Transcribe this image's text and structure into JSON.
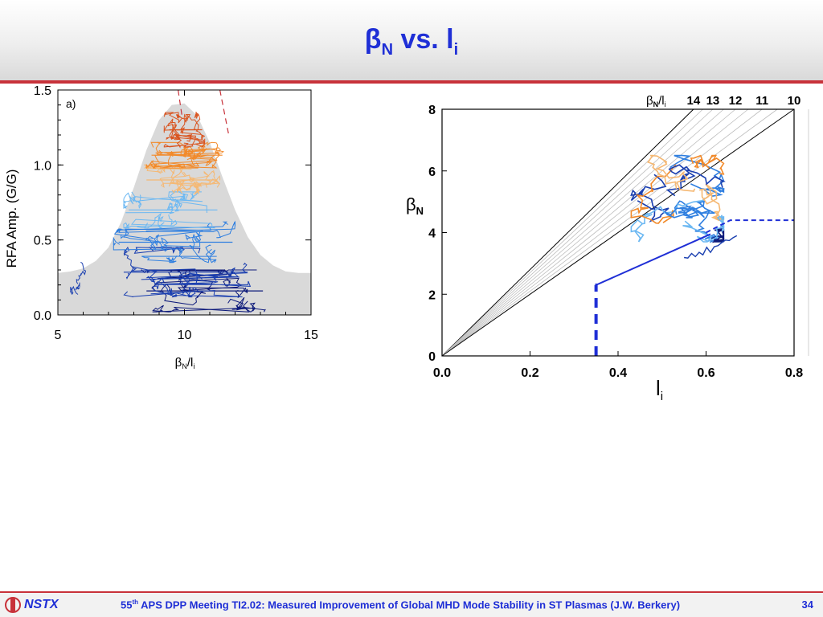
{
  "slide": {
    "title_main": "β",
    "title_sub1": "N",
    "title_mid": " vs. l",
    "title_sub2": "i",
    "footer_logo": "NSTX",
    "footer_sup": "th",
    "footer_pre": "55",
    "footer_text": " APS DPP Meeting TI2.02: Measured Improvement of Global MHD Mode Stability in ST Plasmas (J.W. Berkery)",
    "page_number": "34"
  },
  "colors": {
    "accent": "#1f2fd6",
    "rule": "#c8323a",
    "envelope": "#d9d9d9",
    "series": [
      "#0d1a7a",
      "#1a3fb0",
      "#2f7fe0",
      "#6cb8f2",
      "#f5b873",
      "#f28a2a",
      "#d9531e"
    ]
  },
  "chart_data": [
    {
      "type": "line",
      "panel_label": "a)",
      "xlabel": "β",
      "xlabel_sub1": "N",
      "xlabel_mid": "/l",
      "xlabel_sub2": "i",
      "ylabel": "RFA Amp. (G/G)",
      "xlim": [
        5,
        15
      ],
      "ylim": [
        0,
        1.5
      ],
      "x_ticks": [
        "5",
        "10",
        "15"
      ],
      "y_ticks": [
        "0.0",
        "0.5",
        "1.0",
        "1.5"
      ],
      "envelope": {
        "x": [
          5.0,
          5.5,
          6.0,
          6.5,
          7.0,
          7.5,
          8.0,
          8.5,
          9.0,
          9.5,
          10.0,
          10.5,
          11.0,
          11.5,
          12.0,
          12.5,
          13.0,
          13.5,
          14.0,
          14.5,
          15.0
        ],
        "y": [
          0.28,
          0.29,
          0.31,
          0.36,
          0.45,
          0.62,
          0.85,
          1.1,
          1.3,
          1.4,
          1.41,
          1.33,
          1.15,
          0.92,
          0.7,
          0.52,
          0.4,
          0.33,
          0.29,
          0.28,
          0.28
        ]
      },
      "dashed_lines": [
        {
          "x": [
            9.75,
            9.9
          ],
          "y": [
            1.5,
            1.33
          ]
        },
        {
          "x": [
            11.4,
            11.75
          ],
          "y": [
            1.5,
            1.2
          ]
        }
      ],
      "bands": [
        {
          "color_index": 0,
          "ylo": 0.02,
          "yhi": 0.3,
          "xlo": 8.3,
          "xhi": 13.2
        },
        {
          "color_index": 1,
          "ylo": 0.12,
          "yhi": 0.45,
          "xlo": 7.4,
          "xhi": 12.6
        },
        {
          "color_index": 2,
          "ylo": 0.35,
          "yhi": 0.62,
          "xlo": 7.2,
          "xhi": 12.0
        },
        {
          "color_index": 3,
          "ylo": 0.58,
          "yhi": 0.82,
          "xlo": 7.6,
          "xhi": 11.4
        },
        {
          "color_index": 4,
          "ylo": 0.8,
          "yhi": 1.0,
          "xlo": 8.3,
          "xhi": 11.4
        },
        {
          "color_index": 5,
          "ylo": 0.98,
          "yhi": 1.15,
          "xlo": 8.5,
          "xhi": 11.6
        },
        {
          "color_index": 6,
          "ylo": 1.12,
          "yhi": 1.35,
          "xlo": 9.2,
          "xhi": 10.8
        }
      ],
      "outlier_cluster": {
        "color_index": 1,
        "x": [
          5.5,
          6.1
        ],
        "y": [
          0.08,
          0.38
        ]
      }
    },
    {
      "type": "line",
      "xlabel": "l",
      "xlabel_sub": "i",
      "ylabel": "β",
      "ylabel_sub": "N",
      "xlim": [
        0.0,
        0.8
      ],
      "ylim": [
        0,
        8
      ],
      "x_ticks": [
        "0.0",
        "0.2",
        "0.4",
        "0.6",
        "0.8"
      ],
      "y_ticks": [
        "0",
        "2",
        "4",
        "6",
        "8"
      ],
      "ratio_label": "β",
      "ratio_label_sub1": "N",
      "ratio_label_mid": "/l",
      "ratio_label_sub2": "i",
      "ratio_lines": [
        {
          "ratio": 14,
          "label": "14",
          "style": "dark"
        },
        {
          "ratio": 13.5,
          "label": "",
          "style": "light"
        },
        {
          "ratio": 13,
          "label": "13",
          "style": "light"
        },
        {
          "ratio": 12.5,
          "label": "",
          "style": "light"
        },
        {
          "ratio": 12,
          "label": "12",
          "style": "light"
        },
        {
          "ratio": 11.5,
          "label": "",
          "style": "light"
        },
        {
          "ratio": 11,
          "label": "11",
          "style": "light"
        },
        {
          "ratio": 10.5,
          "label": "",
          "style": "light"
        },
        {
          "ratio": 10,
          "label": "10",
          "style": "dark"
        }
      ],
      "boundary_solid": {
        "x": [
          0.35,
          0.35,
          0.61
        ],
        "y": [
          2.35,
          2.3,
          3.95
        ]
      },
      "boundary_dashed_vertical": {
        "x": [
          0.35,
          0.35
        ],
        "y": [
          0.0,
          2.3
        ]
      },
      "boundary_dashed": {
        "x": [
          0.6,
          0.655,
          0.8
        ],
        "y": [
          4.0,
          4.4,
          4.4
        ]
      },
      "cluster": {
        "x": [
          0.43,
          0.64
        ],
        "y": [
          3.7,
          6.5
        ]
      },
      "tail": {
        "x": [
          0.55,
          0.67
        ],
        "y": [
          3.1,
          3.8
        ]
      }
    }
  ]
}
